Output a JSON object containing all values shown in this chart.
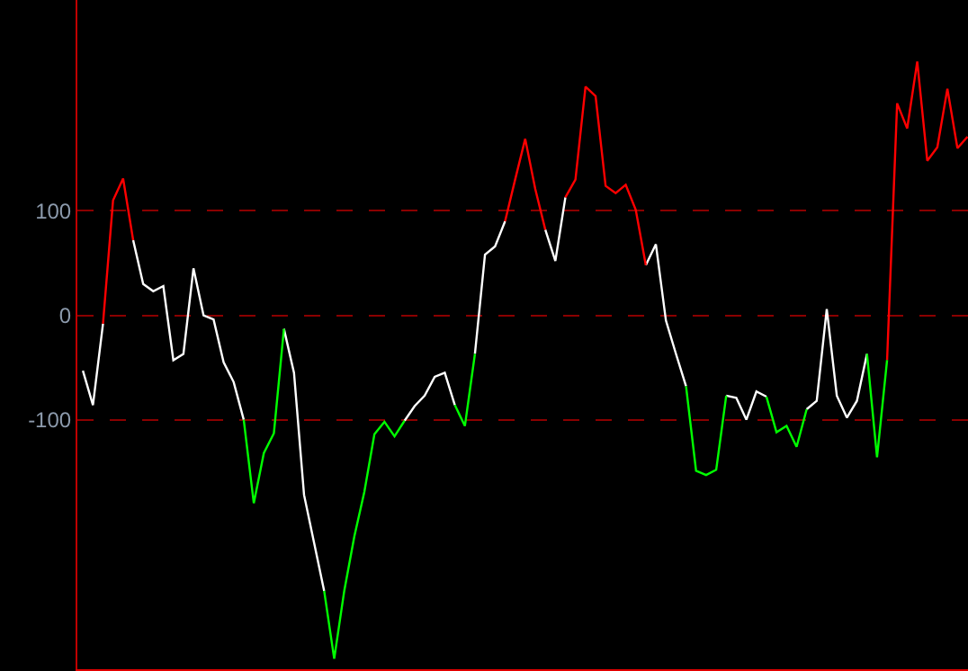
{
  "chart_data": {
    "type": "line",
    "categories": [
      null,
      null,
      null,
      null,
      null,
      null,
      null,
      null,
      null,
      null,
      null,
      null,
      null,
      null,
      null,
      null,
      null,
      null,
      null,
      null,
      null,
      null,
      null,
      null,
      null,
      null,
      null,
      null,
      null,
      null,
      null,
      null,
      null,
      null,
      null,
      null,
      null,
      null,
      null,
      null,
      null,
      null,
      null,
      null,
      null,
      null,
      null,
      null,
      null,
      null,
      null,
      null,
      null,
      null,
      null,
      null,
      null,
      null,
      null,
      null,
      null,
      null,
      null,
      null,
      null,
      null,
      null,
      null,
      null,
      null,
      null,
      null,
      null,
      null,
      null,
      null,
      null,
      null,
      null,
      null,
      null,
      null,
      null,
      null,
      null,
      null,
      null,
      null,
      null
    ],
    "series": [
      {
        "color": "#ffffff",
        "values": [
          -53,
          -86,
          -8,
          null,
          null,
          72,
          30,
          23,
          28,
          -43,
          -37,
          45,
          0,
          -4,
          -45,
          -64,
          -100,
          null,
          null,
          null,
          -13,
          -55,
          -172,
          -218,
          -264,
          null,
          null,
          null,
          null,
          null,
          null,
          null,
          -101,
          -87,
          -77,
          -59,
          -55,
          -86,
          null,
          -37,
          58,
          66,
          90,
          null,
          null,
          null,
          82,
          52,
          113,
          null,
          null,
          null,
          null,
          null,
          null,
          null,
          48,
          68,
          -5,
          -37,
          -68,
          null,
          null,
          null,
          -77,
          -79,
          -100,
          -73,
          -78,
          null,
          null,
          null,
          -90,
          -82,
          6,
          -77,
          -98,
          -82,
          -37,
          null,
          null,
          null,
          null,
          null,
          null,
          null,
          null,
          null,
          null
        ]
      },
      {
        "color": "#ff0000",
        "values": [
          null,
          null,
          -8,
          110,
          131,
          72,
          null,
          null,
          null,
          null,
          null,
          null,
          null,
          null,
          null,
          null,
          null,
          null,
          null,
          null,
          null,
          null,
          null,
          null,
          null,
          null,
          null,
          null,
          null,
          null,
          null,
          null,
          null,
          null,
          null,
          null,
          null,
          null,
          null,
          null,
          null,
          null,
          90,
          130,
          169,
          121,
          82,
          null,
          113,
          130,
          219,
          210,
          124,
          117,
          125,
          101,
          48,
          null,
          null,
          null,
          null,
          null,
          null,
          null,
          null,
          null,
          null,
          null,
          null,
          null,
          null,
          null,
          null,
          null,
          null,
          null,
          null,
          null,
          null,
          null,
          -43,
          203,
          179,
          243,
          148,
          161,
          217,
          160,
          171
        ]
      },
      {
        "color": "#00ff00",
        "values": [
          null,
          null,
          null,
          null,
          null,
          null,
          null,
          null,
          null,
          null,
          null,
          null,
          null,
          null,
          null,
          null,
          -100,
          -180,
          -132,
          -113,
          -13,
          null,
          null,
          null,
          -264,
          -329,
          -264,
          -212,
          -169,
          -114,
          -102,
          -116,
          -101,
          null,
          null,
          null,
          null,
          -86,
          -106,
          -37,
          null,
          null,
          null,
          null,
          null,
          null,
          null,
          null,
          null,
          null,
          null,
          null,
          null,
          null,
          null,
          null,
          null,
          null,
          null,
          null,
          -68,
          -149,
          -153,
          -148,
          -77,
          null,
          null,
          null,
          -78,
          -112,
          -106,
          -126,
          -90,
          null,
          null,
          null,
          null,
          null,
          -37,
          -136,
          -43,
          null,
          null,
          null,
          null,
          null,
          null,
          null,
          null
        ]
      }
    ],
    "ylim": [
      -339,
      302
    ],
    "yticks": [
      100,
      0,
      -100
    ],
    "grid": "y",
    "tick_labels": "y",
    "marker": "none",
    "line_style": "solid"
  }
}
